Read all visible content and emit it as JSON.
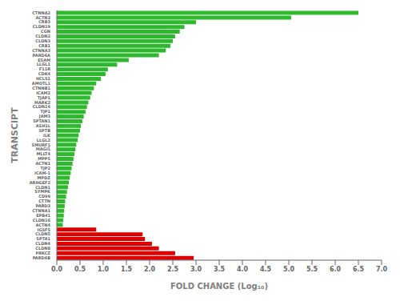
{
  "chart_data": {
    "type": "bar",
    "orientation": "horizontal",
    "xlabel": "FOLD CHANGE (Log₁₀)",
    "ylabel": "TRANSCIPT",
    "categories": [
      "CTNNA2",
      "ACTN3",
      "CRB3",
      "CLDN19",
      "CGN",
      "CLDN2",
      "CLDN3",
      "CRB1",
      "CTNNA3",
      "PARD6A",
      "ESAM",
      "LLGL1",
      "F11R",
      "CDK4",
      "HCLS1",
      "AMOTL1",
      "CTNNB1",
      "ICAM2",
      "TJAP1",
      "MARK2",
      "CLDN14",
      "TJP1",
      "JAM3",
      "SPTAN1",
      "ASH1L",
      "SPTB",
      "ILK",
      "LLGL2",
      "SMURF1",
      "MAGI1",
      "MLLT4",
      "MPP5",
      "ACTN1",
      "TJP2",
      "ICAM-1",
      "MPDZ",
      "ARHGEF2",
      "CLDN1",
      "SYMPK",
      "CD99",
      "CTTN",
      "PARD3",
      "CTNNA1",
      "EPB41",
      "CLDN16",
      "ACTN4",
      "IGSF5",
      "CLDN5",
      "SPTA1",
      "CLDN4",
      "CLDN8",
      "PRKCZ",
      "PARD6B"
    ],
    "values": [
      6.5,
      5.05,
      3.0,
      2.75,
      2.65,
      2.55,
      2.5,
      2.45,
      2.35,
      2.2,
      1.55,
      1.3,
      1.1,
      1.05,
      0.95,
      0.85,
      0.8,
      0.75,
      0.72,
      0.68,
      0.65,
      0.62,
      0.58,
      0.55,
      0.52,
      0.5,
      0.47,
      0.45,
      0.42,
      0.4,
      0.38,
      0.36,
      0.34,
      0.32,
      0.3,
      0.28,
      0.26,
      0.24,
      0.22,
      0.2,
      0.18,
      0.17,
      0.16,
      0.15,
      0.14,
      0.13,
      0.85,
      1.85,
      1.9,
      2.05,
      2.2,
      2.55,
      2.95
    ],
    "colors": [
      "#2db82d",
      "#2db82d",
      "#2db82d",
      "#2db82d",
      "#2db82d",
      "#2db82d",
      "#2db82d",
      "#2db82d",
      "#2db82d",
      "#2db82d",
      "#2db82d",
      "#2db82d",
      "#2db82d",
      "#2db82d",
      "#2db82d",
      "#2db82d",
      "#2db82d",
      "#2db82d",
      "#2db82d",
      "#2db82d",
      "#2db82d",
      "#2db82d",
      "#2db82d",
      "#2db82d",
      "#2db82d",
      "#2db82d",
      "#2db82d",
      "#2db82d",
      "#2db82d",
      "#2db82d",
      "#2db82d",
      "#2db82d",
      "#2db82d",
      "#2db82d",
      "#2db82d",
      "#2db82d",
      "#2db82d",
      "#2db82d",
      "#2db82d",
      "#2db82d",
      "#2db82d",
      "#2db82d",
      "#2db82d",
      "#2db82d",
      "#2db82d",
      "#2db82d",
      "#dd0000",
      "#dd0000",
      "#dd0000",
      "#dd0000",
      "#dd0000",
      "#dd0000",
      "#dd0000"
    ],
    "xlim": [
      0,
      7.0
    ],
    "xticks": [
      {
        "value": 0.0,
        "label": "0.0"
      },
      0.5,
      {
        "value": 1.0,
        "label": "1.0"
      },
      1.5,
      {
        "value": 2.0,
        "label": "2.0"
      },
      2.5,
      {
        "value": 3.0,
        "label": "3.0"
      },
      3.5,
      {
        "value": 4.0,
        "label": "4.0"
      },
      4.5,
      {
        "value": 5.0,
        "label": "5.0"
      },
      5.5,
      {
        "value": 6.0,
        "label": "6.0"
      },
      6.5,
      {
        "value": 7.0,
        "label": "7.0"
      }
    ],
    "grid": false
  }
}
